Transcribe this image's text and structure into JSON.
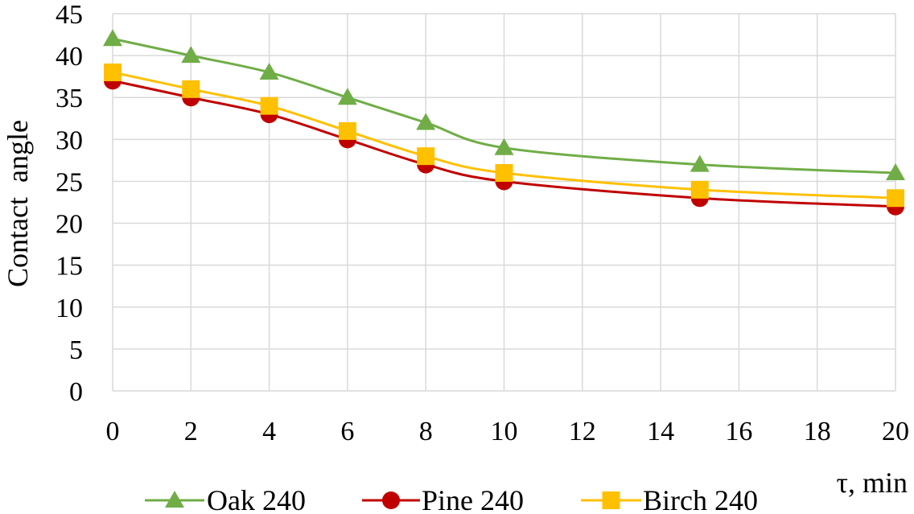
{
  "chart_data": {
    "type": "line",
    "title": "",
    "xlabel": "τ, min",
    "ylabel": "Contact  angle",
    "x_ticks": [
      0,
      2,
      4,
      6,
      8,
      10,
      12,
      14,
      16,
      18,
      20
    ],
    "y_ticks": [
      0,
      5,
      10,
      15,
      20,
      25,
      30,
      35,
      40,
      45
    ],
    "xlim": [
      0,
      20
    ],
    "ylim": [
      0,
      45
    ],
    "grid": true,
    "legend_position": "bottom",
    "series": [
      {
        "name": "Oak 240",
        "color": "#70ad47",
        "marker": "triangle",
        "x": [
          0,
          2,
          4,
          6,
          8,
          10,
          15,
          20
        ],
        "values": [
          42,
          40,
          38,
          35,
          32,
          29,
          27,
          26
        ]
      },
      {
        "name": "Pine 240",
        "color": "#c00000",
        "marker": "circle",
        "x": [
          0,
          2,
          4,
          6,
          8,
          10,
          15,
          20
        ],
        "values": [
          37,
          35,
          33,
          30,
          27,
          25,
          23,
          22
        ]
      },
      {
        "name": "Birch 240",
        "color": "#ffc000",
        "marker": "square",
        "x": [
          0,
          2,
          4,
          6,
          8,
          10,
          15,
          20
        ],
        "values": [
          38,
          36,
          34,
          31,
          28,
          26,
          24,
          23
        ]
      }
    ]
  }
}
